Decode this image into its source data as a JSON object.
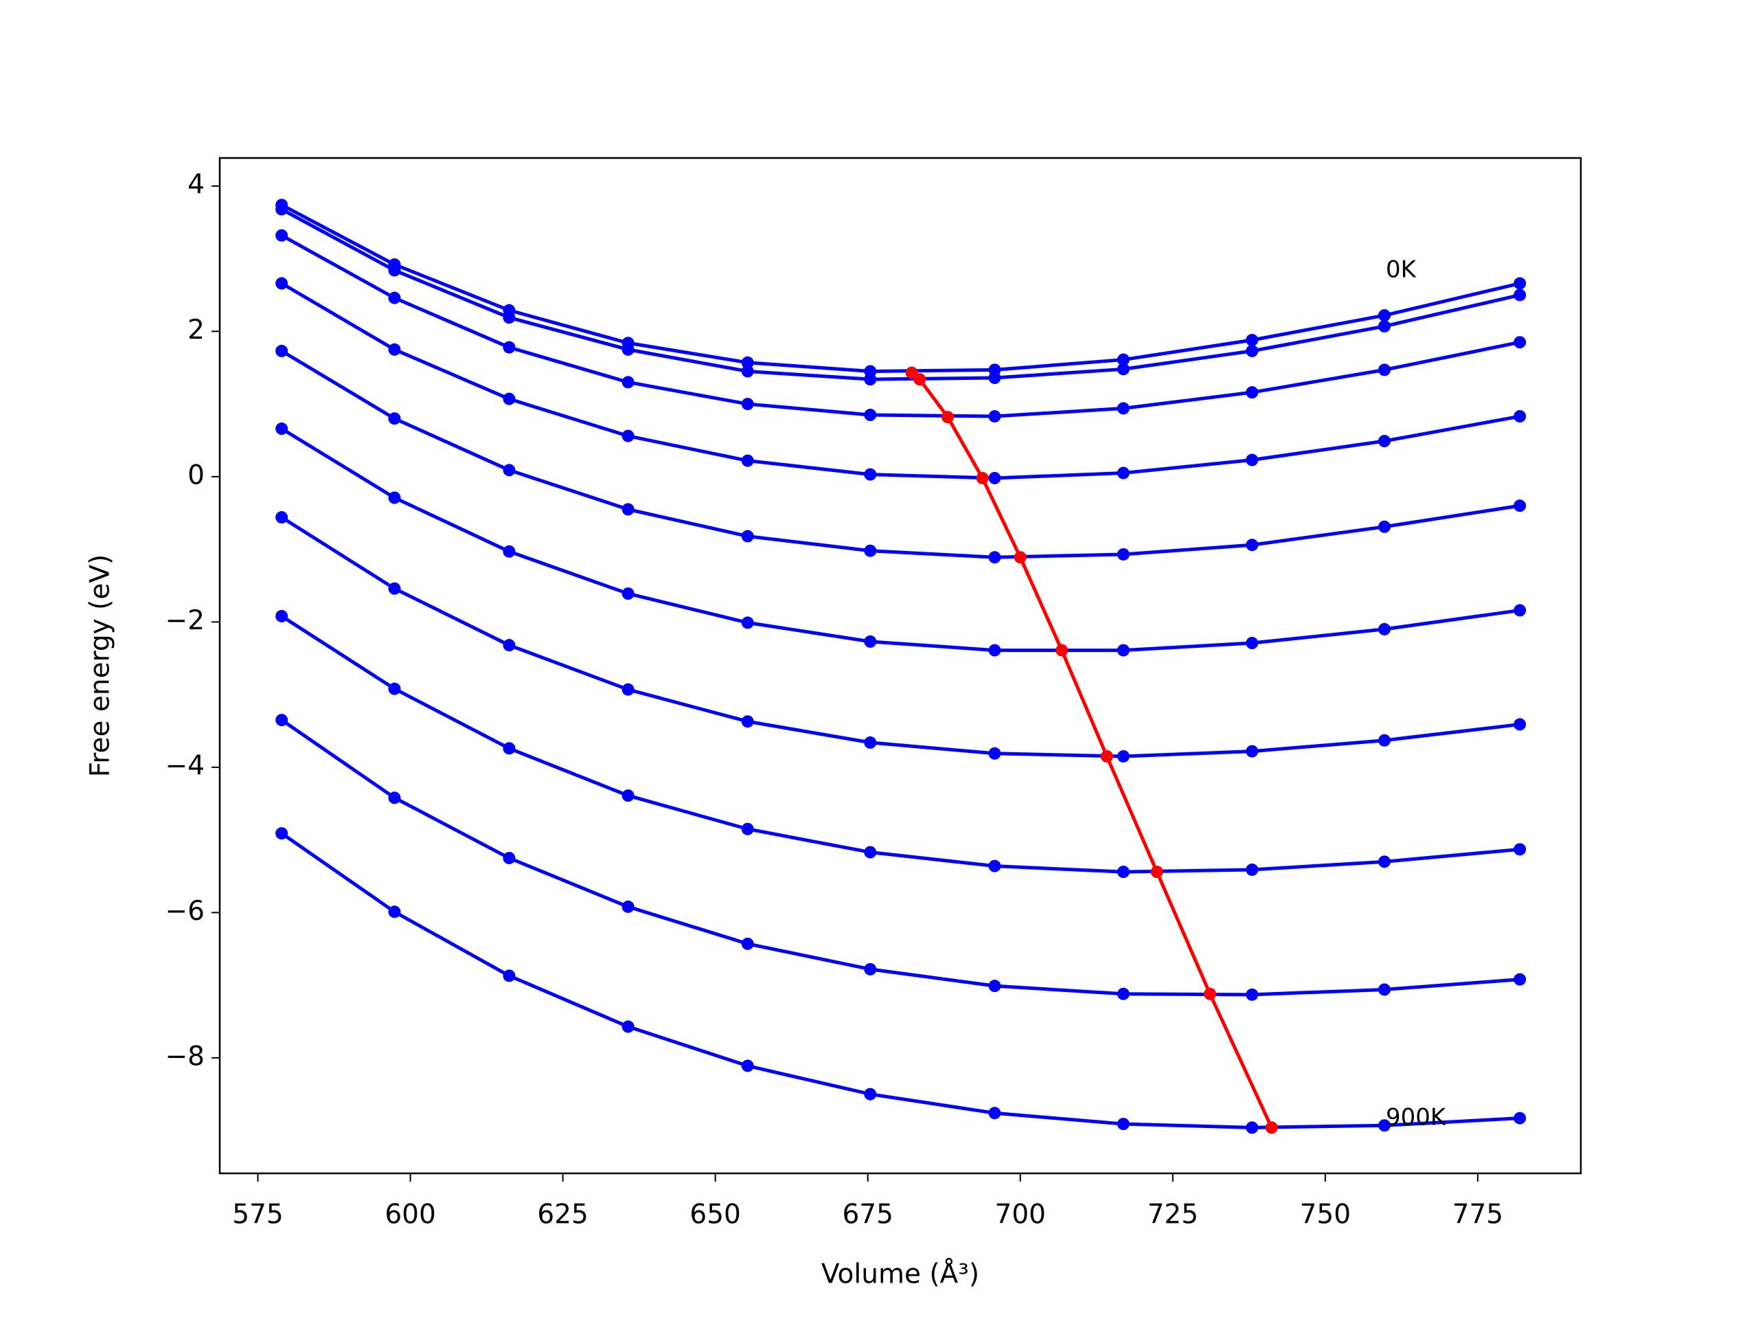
{
  "chart_data": {
    "type": "line",
    "x_label": "Volume (Å³)",
    "y_label": "Free energy (eV)",
    "xlim": [
      568.75,
      791.9
    ],
    "ylim": [
      -9.59,
      4.386
    ],
    "xticks": [
      575,
      600,
      625,
      650,
      675,
      700,
      725,
      750,
      775
    ],
    "yticks": [
      {
        "value": -8,
        "label": "−8"
      },
      {
        "value": -6,
        "label": "−6"
      },
      {
        "value": -4,
        "label": "−4"
      },
      {
        "value": -2,
        "label": "−2"
      },
      0,
      2,
      4
    ],
    "x": [
      578.9,
      597.4,
      616.2,
      635.7,
      655.3,
      675.4,
      695.8,
      716.9,
      738.0,
      759.7,
      781.9
    ],
    "curve_color": "#0000ff",
    "curves": [
      [
        3.74,
        2.92,
        2.29,
        1.84,
        1.57,
        1.45,
        1.47,
        1.61,
        1.88,
        2.22,
        2.66
      ],
      [
        3.68,
        2.84,
        2.19,
        1.75,
        1.45,
        1.34,
        1.36,
        1.48,
        1.73,
        2.07,
        2.5
      ],
      [
        3.32,
        2.46,
        1.78,
        1.3,
        1.0,
        0.85,
        0.83,
        0.94,
        1.16,
        1.47,
        1.85
      ],
      [
        2.66,
        1.75,
        1.07,
        0.56,
        0.22,
        0.03,
        -0.02,
        0.05,
        0.23,
        0.49,
        0.83
      ],
      [
        1.73,
        0.8,
        0.09,
        -0.45,
        -0.82,
        -1.02,
        -1.11,
        -1.07,
        -0.94,
        -0.69,
        -0.4
      ],
      [
        0.66,
        -0.29,
        -1.03,
        -1.61,
        -2.01,
        -2.27,
        -2.39,
        -2.39,
        -2.29,
        -2.1,
        -1.84
      ],
      [
        -0.56,
        -1.54,
        -2.32,
        -2.93,
        -3.37,
        -3.66,
        -3.81,
        -3.85,
        -3.78,
        -3.63,
        -3.41
      ],
      [
        -1.92,
        -2.92,
        -3.74,
        -4.39,
        -4.85,
        -5.17,
        -5.36,
        -5.44,
        -5.41,
        -5.3,
        -5.13
      ],
      [
        -3.35,
        -4.42,
        -5.25,
        -5.92,
        -6.43,
        -6.78,
        -7.01,
        -7.12,
        -7.13,
        -7.06,
        -6.92
      ],
      [
        -4.91,
        -5.99,
        -6.87,
        -7.57,
        -8.11,
        -8.5,
        -8.76,
        -8.91,
        -8.96,
        -8.93,
        -8.83
      ]
    ],
    "minima": {
      "color": "#ff0000",
      "x": [
        682.2,
        683.5,
        688.1,
        693.8,
        700.0,
        706.8,
        714.2,
        722.4,
        731.1,
        741.2
      ],
      "values": [
        1.43,
        1.34,
        0.82,
        -0.02,
        -1.11,
        -2.39,
        -3.85,
        -5.44,
        -7.12,
        -8.96
      ]
    },
    "annotations": [
      "0K",
      "900K"
    ]
  }
}
